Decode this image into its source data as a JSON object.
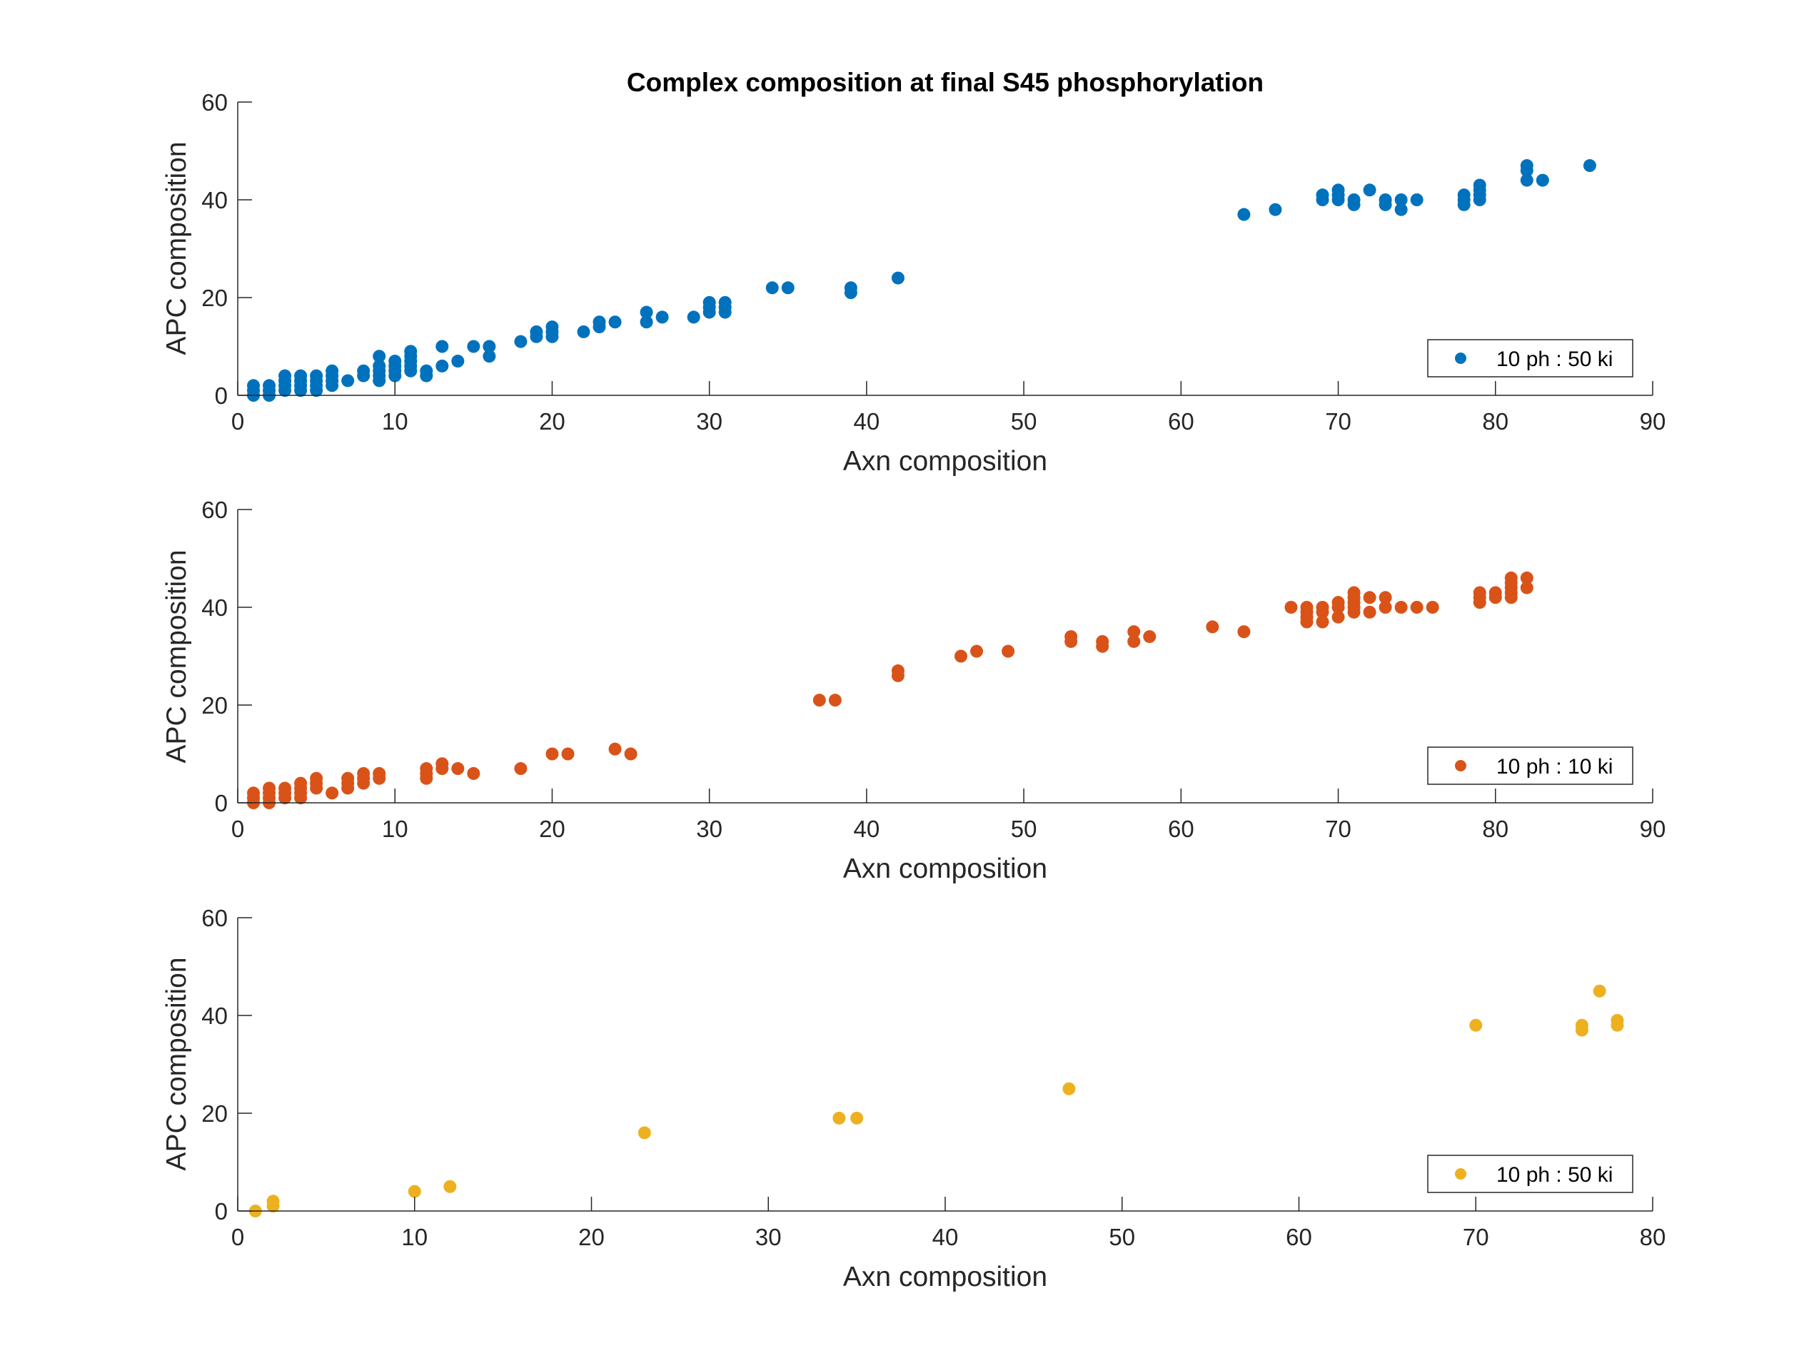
{
  "chart_data": [
    {
      "type": "scatter",
      "title": "Complex composition at final S45 phosphorylation",
      "xlabel": "Axn composition",
      "ylabel": "APC composition",
      "xlim": [
        0,
        90
      ],
      "ylim": [
        0,
        60
      ],
      "xticks": [
        0,
        10,
        20,
        30,
        40,
        50,
        60,
        70,
        80,
        90
      ],
      "yticks": [
        0,
        20,
        40,
        60
      ],
      "grid": false,
      "legend_position": "bottom-right",
      "series": [
        {
          "name": "10 ph : 50 ki",
          "color": "#0072BD",
          "points": [
            [
              1,
              0
            ],
            [
              1,
              1
            ],
            [
              1,
              2
            ],
            [
              2,
              0
            ],
            [
              2,
              1
            ],
            [
              2,
              2
            ],
            [
              3,
              1
            ],
            [
              3,
              2
            ],
            [
              3,
              3
            ],
            [
              3,
              4
            ],
            [
              4,
              1
            ],
            [
              4,
              2
            ],
            [
              4,
              3
            ],
            [
              4,
              4
            ],
            [
              5,
              1
            ],
            [
              5,
              2
            ],
            [
              5,
              3
            ],
            [
              5,
              4
            ],
            [
              6,
              2
            ],
            [
              6,
              3
            ],
            [
              6,
              4
            ],
            [
              6,
              5
            ],
            [
              7,
              3
            ],
            [
              8,
              4
            ],
            [
              8,
              5
            ],
            [
              9,
              3
            ],
            [
              9,
              4
            ],
            [
              9,
              5
            ],
            [
              9,
              6
            ],
            [
              9,
              8
            ],
            [
              10,
              4
            ],
            [
              10,
              5
            ],
            [
              10,
              6
            ],
            [
              10,
              7
            ],
            [
              11,
              5
            ],
            [
              11,
              6
            ],
            [
              11,
              7
            ],
            [
              11,
              8
            ],
            [
              11,
              9
            ],
            [
              12,
              4
            ],
            [
              12,
              5
            ],
            [
              13,
              6
            ],
            [
              13,
              10
            ],
            [
              14,
              7
            ],
            [
              15,
              10
            ],
            [
              16,
              8
            ],
            [
              16,
              10
            ],
            [
              18,
              11
            ],
            [
              19,
              12
            ],
            [
              19,
              13
            ],
            [
              20,
              12
            ],
            [
              20,
              13
            ],
            [
              20,
              14
            ],
            [
              22,
              13
            ],
            [
              23,
              14
            ],
            [
              23,
              15
            ],
            [
              24,
              15
            ],
            [
              26,
              15
            ],
            [
              26,
              17
            ],
            [
              27,
              16
            ],
            [
              29,
              16
            ],
            [
              30,
              17
            ],
            [
              30,
              18
            ],
            [
              30,
              19
            ],
            [
              31,
              17
            ],
            [
              31,
              18
            ],
            [
              31,
              19
            ],
            [
              34,
              22
            ],
            [
              35,
              22
            ],
            [
              39,
              21
            ],
            [
              39,
              22
            ],
            [
              42,
              24
            ],
            [
              64,
              37
            ],
            [
              66,
              38
            ],
            [
              69,
              40
            ],
            [
              69,
              41
            ],
            [
              70,
              40
            ],
            [
              70,
              41
            ],
            [
              70,
              42
            ],
            [
              71,
              39
            ],
            [
              71,
              40
            ],
            [
              72,
              42
            ],
            [
              73,
              39
            ],
            [
              73,
              40
            ],
            [
              74,
              38
            ],
            [
              74,
              40
            ],
            [
              75,
              40
            ],
            [
              78,
              39
            ],
            [
              78,
              40
            ],
            [
              78,
              41
            ],
            [
              79,
              40
            ],
            [
              79,
              41
            ],
            [
              79,
              42
            ],
            [
              79,
              43
            ],
            [
              82,
              44
            ],
            [
              82,
              46
            ],
            [
              82,
              47
            ],
            [
              83,
              44
            ],
            [
              86,
              47
            ]
          ]
        }
      ]
    },
    {
      "type": "scatter",
      "xlabel": "Axn composition",
      "ylabel": "APC composition",
      "xlim": [
        0,
        90
      ],
      "ylim": [
        0,
        60
      ],
      "xticks": [
        0,
        10,
        20,
        30,
        40,
        50,
        60,
        70,
        80,
        90
      ],
      "yticks": [
        0,
        20,
        40,
        60
      ],
      "grid": false,
      "legend_position": "bottom-right",
      "series": [
        {
          "name": "10 ph : 10 ki",
          "color": "#D95319",
          "points": [
            [
              1,
              0
            ],
            [
              1,
              1
            ],
            [
              1,
              2
            ],
            [
              2,
              0
            ],
            [
              2,
              1
            ],
            [
              2,
              2
            ],
            [
              2,
              3
            ],
            [
              3,
              1
            ],
            [
              3,
              2
            ],
            [
              3,
              3
            ],
            [
              4,
              1
            ],
            [
              4,
              2
            ],
            [
              4,
              3
            ],
            [
              4,
              4
            ],
            [
              5,
              3
            ],
            [
              5,
              4
            ],
            [
              5,
              5
            ],
            [
              6,
              2
            ],
            [
              7,
              3
            ],
            [
              7,
              4
            ],
            [
              7,
              5
            ],
            [
              8,
              4
            ],
            [
              8,
              5
            ],
            [
              8,
              6
            ],
            [
              9,
              5
            ],
            [
              9,
              6
            ],
            [
              12,
              5
            ],
            [
              12,
              6
            ],
            [
              12,
              7
            ],
            [
              13,
              7
            ],
            [
              13,
              8
            ],
            [
              14,
              7
            ],
            [
              15,
              6
            ],
            [
              18,
              7
            ],
            [
              20,
              10
            ],
            [
              21,
              10
            ],
            [
              24,
              11
            ],
            [
              25,
              10
            ],
            [
              37,
              21
            ],
            [
              38,
              21
            ],
            [
              42,
              26
            ],
            [
              42,
              27
            ],
            [
              46,
              30
            ],
            [
              47,
              31
            ],
            [
              49,
              31
            ],
            [
              53,
              33
            ],
            [
              53,
              34
            ],
            [
              55,
              32
            ],
            [
              55,
              33
            ],
            [
              57,
              33
            ],
            [
              57,
              35
            ],
            [
              58,
              34
            ],
            [
              62,
              36
            ],
            [
              64,
              35
            ],
            [
              67,
              40
            ],
            [
              68,
              37
            ],
            [
              68,
              38
            ],
            [
              68,
              39
            ],
            [
              68,
              40
            ],
            [
              69,
              37
            ],
            [
              69,
              39
            ],
            [
              69,
              40
            ],
            [
              70,
              38
            ],
            [
              70,
              40
            ],
            [
              70,
              41
            ],
            [
              71,
              39
            ],
            [
              71,
              40
            ],
            [
              71,
              41
            ],
            [
              71,
              42
            ],
            [
              71,
              43
            ],
            [
              72,
              39
            ],
            [
              72,
              42
            ],
            [
              73,
              40
            ],
            [
              73,
              42
            ],
            [
              74,
              40
            ],
            [
              75,
              40
            ],
            [
              76,
              40
            ],
            [
              79,
              41
            ],
            [
              79,
              42
            ],
            [
              79,
              43
            ],
            [
              80,
              42
            ],
            [
              80,
              43
            ],
            [
              81,
              42
            ],
            [
              81,
              43
            ],
            [
              81,
              44
            ],
            [
              81,
              45
            ],
            [
              81,
              46
            ],
            [
              82,
              44
            ],
            [
              82,
              46
            ]
          ]
        }
      ]
    },
    {
      "type": "scatter",
      "xlabel": "Axn composition",
      "ylabel": "APC composition",
      "xlim": [
        0,
        80
      ],
      "ylim": [
        0,
        60
      ],
      "xticks": [
        0,
        10,
        20,
        30,
        40,
        50,
        60,
        70,
        80
      ],
      "yticks": [
        0,
        20,
        40,
        60
      ],
      "grid": false,
      "legend_position": "bottom-right",
      "series": [
        {
          "name": "10 ph : 50 ki",
          "color": "#EDB120",
          "points": [
            [
              1,
              0
            ],
            [
              2,
              1
            ],
            [
              2,
              2
            ],
            [
              10,
              4
            ],
            [
              12,
              5
            ],
            [
              23,
              16
            ],
            [
              34,
              19
            ],
            [
              35,
              19
            ],
            [
              47,
              25
            ],
            [
              70,
              38
            ],
            [
              76,
              37
            ],
            [
              76,
              38
            ],
            [
              77,
              45
            ],
            [
              78,
              38
            ],
            [
              78,
              39
            ]
          ]
        }
      ]
    }
  ]
}
